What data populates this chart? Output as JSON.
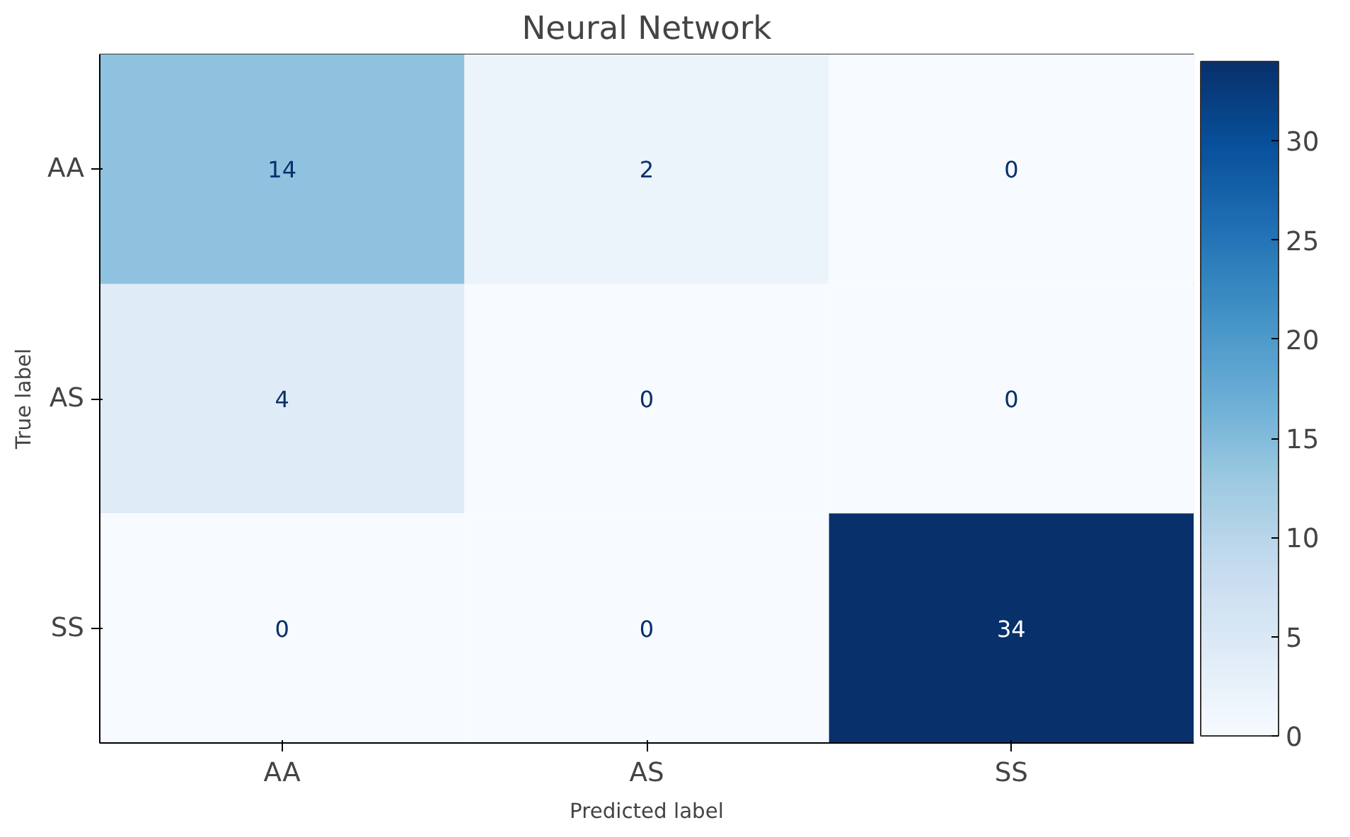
{
  "chart_data": {
    "type": "heatmap",
    "title": "Neural Network",
    "xlabel": "Predicted label",
    "ylabel": "True label",
    "categories": [
      "AA",
      "AS",
      "SS"
    ],
    "y_categories": [
      "AA",
      "AS",
      "SS"
    ],
    "cells": [
      [
        14,
        2,
        0
      ],
      [
        4,
        0,
        0
      ],
      [
        0,
        0,
        34
      ]
    ],
    "clim": [
      0,
      34
    ],
    "cticks": [
      0,
      5,
      10,
      15,
      20,
      25,
      30
    ],
    "data_labels": true,
    "grid": false
  }
}
